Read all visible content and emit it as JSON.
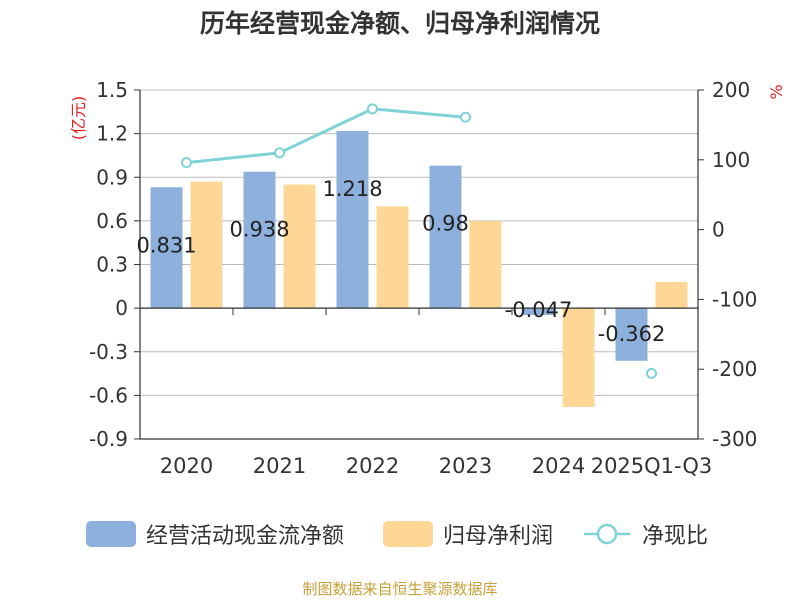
{
  "title": "历年经营现金净额、归母净利润情况",
  "source": "制图数据来自恒生聚源数据库",
  "colors": {
    "bar_cash": "#8eb0dd",
    "bar_profit": "#fed797",
    "line_ratio": "#7fd3d7",
    "axis": "#333333",
    "grid": "#bbbbbb",
    "unit": "#e02020",
    "source": "#c9a13a"
  },
  "chart_data": {
    "type": "bar",
    "title": "历年经营现金净额、归母净利润情况",
    "categories": [
      "2020",
      "2021",
      "2022",
      "2023",
      "2024",
      "2025Q1-Q3"
    ],
    "y_left": {
      "unit": "(亿元)",
      "ylim": [
        -0.9,
        1.5
      ],
      "ticks": [
        "1.5",
        "1.2",
        "0.9",
        "0.6",
        "0.3",
        "0",
        "-0.3",
        "-0.6",
        "-0.9"
      ]
    },
    "y_right": {
      "unit": "%",
      "ylim": [
        -300,
        200
      ],
      "ticks": [
        "200",
        "100",
        "0",
        "-100",
        "-200",
        "-300"
      ]
    },
    "series": [
      {
        "name": "经营活动现金流净额",
        "type": "bar",
        "axis": "left",
        "values": [
          0.831,
          0.938,
          1.218,
          0.98,
          -0.047,
          -0.362
        ],
        "labels": [
          "0.831",
          "0.938",
          "1.218",
          "0.98",
          "-0.047",
          "-0.362"
        ]
      },
      {
        "name": "归母净利润",
        "type": "bar",
        "axis": "left",
        "values": [
          0.87,
          0.85,
          0.7,
          0.6,
          -0.68,
          0.18
        ]
      },
      {
        "name": "净现比",
        "type": "line",
        "axis": "right",
        "values": [
          96,
          110,
          173,
          161,
          null,
          -206
        ]
      }
    ],
    "grid": true,
    "legend": "bottom"
  }
}
